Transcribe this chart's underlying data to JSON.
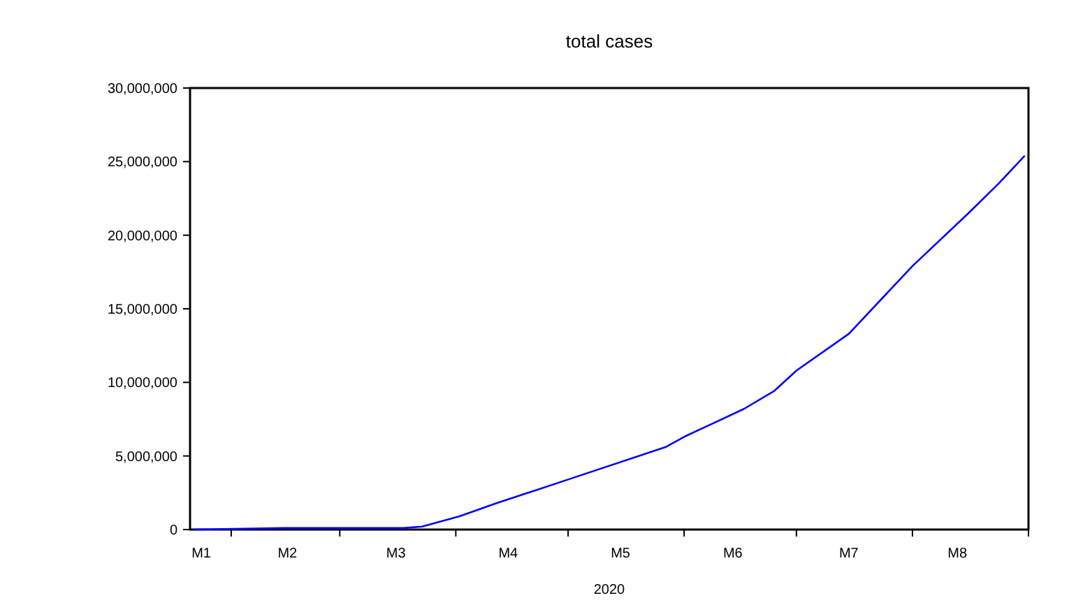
{
  "chart_data": {
    "type": "line",
    "title": "total cases",
    "xlabel": "2020",
    "x": [
      "2020-01-22",
      "2020-02-15",
      "2020-03-01",
      "2020-03-10",
      "2020-03-18",
      "2020-03-23",
      "2020-04-02",
      "2020-04-12",
      "2020-05-01",
      "2020-05-27",
      "2020-06-01",
      "2020-06-17",
      "2020-06-25",
      "2020-07-01",
      "2020-07-15",
      "2020-08-01",
      "2020-08-16",
      "2020-08-24",
      "2020-08-31"
    ],
    "series": [
      {
        "color": "#0000ff",
        "values": [
          0,
          100000,
          100000,
          100000,
          100000,
          200000,
          900000,
          1800000,
          3400000,
          5600000,
          6300000,
          8200000,
          9400000,
          10800000,
          13300000,
          17900000,
          21500000,
          23500000,
          25400000
        ]
      }
    ],
    "xlim": [
      "2020-01-21",
      "2020-09-01"
    ],
    "xticks": [
      {
        "value": "2020-01-24",
        "label": "M1"
      },
      {
        "value": "2020-02-01",
        "label": null
      },
      {
        "value": "2020-02-16",
        "label": "M2"
      },
      {
        "value": "2020-03-01",
        "label": null
      },
      {
        "value": "2020-03-16",
        "label": "M3"
      },
      {
        "value": "2020-04-01",
        "label": null
      },
      {
        "value": "2020-04-15",
        "label": "M4"
      },
      {
        "value": "2020-05-01",
        "label": null
      },
      {
        "value": "2020-05-15",
        "label": "M5"
      },
      {
        "value": "2020-06-01",
        "label": null
      },
      {
        "value": "2020-06-14",
        "label": "M6"
      },
      {
        "value": "2020-07-01",
        "label": null
      },
      {
        "value": "2020-07-15",
        "label": "M7"
      },
      {
        "value": "2020-08-01",
        "label": null
      },
      {
        "value": "2020-08-13",
        "label": "M8"
      },
      {
        "value": "2020-09-01",
        "label": null
      }
    ],
    "ylim": [
      0,
      30000000
    ],
    "yticks": [
      {
        "value": 0,
        "label": "0"
      },
      {
        "value": 5000000,
        "label": "5,000,000"
      },
      {
        "value": 10000000,
        "label": "10,000,000"
      },
      {
        "value": 15000000,
        "label": "15,000,000"
      },
      {
        "value": 20000000,
        "label": "20,000,000"
      },
      {
        "value": 25000000,
        "label": "25,000,000"
      },
      {
        "value": 30000000,
        "label": "30,000,000"
      }
    ],
    "grid": false,
    "marker": "none",
    "line_style": "solid"
  }
}
